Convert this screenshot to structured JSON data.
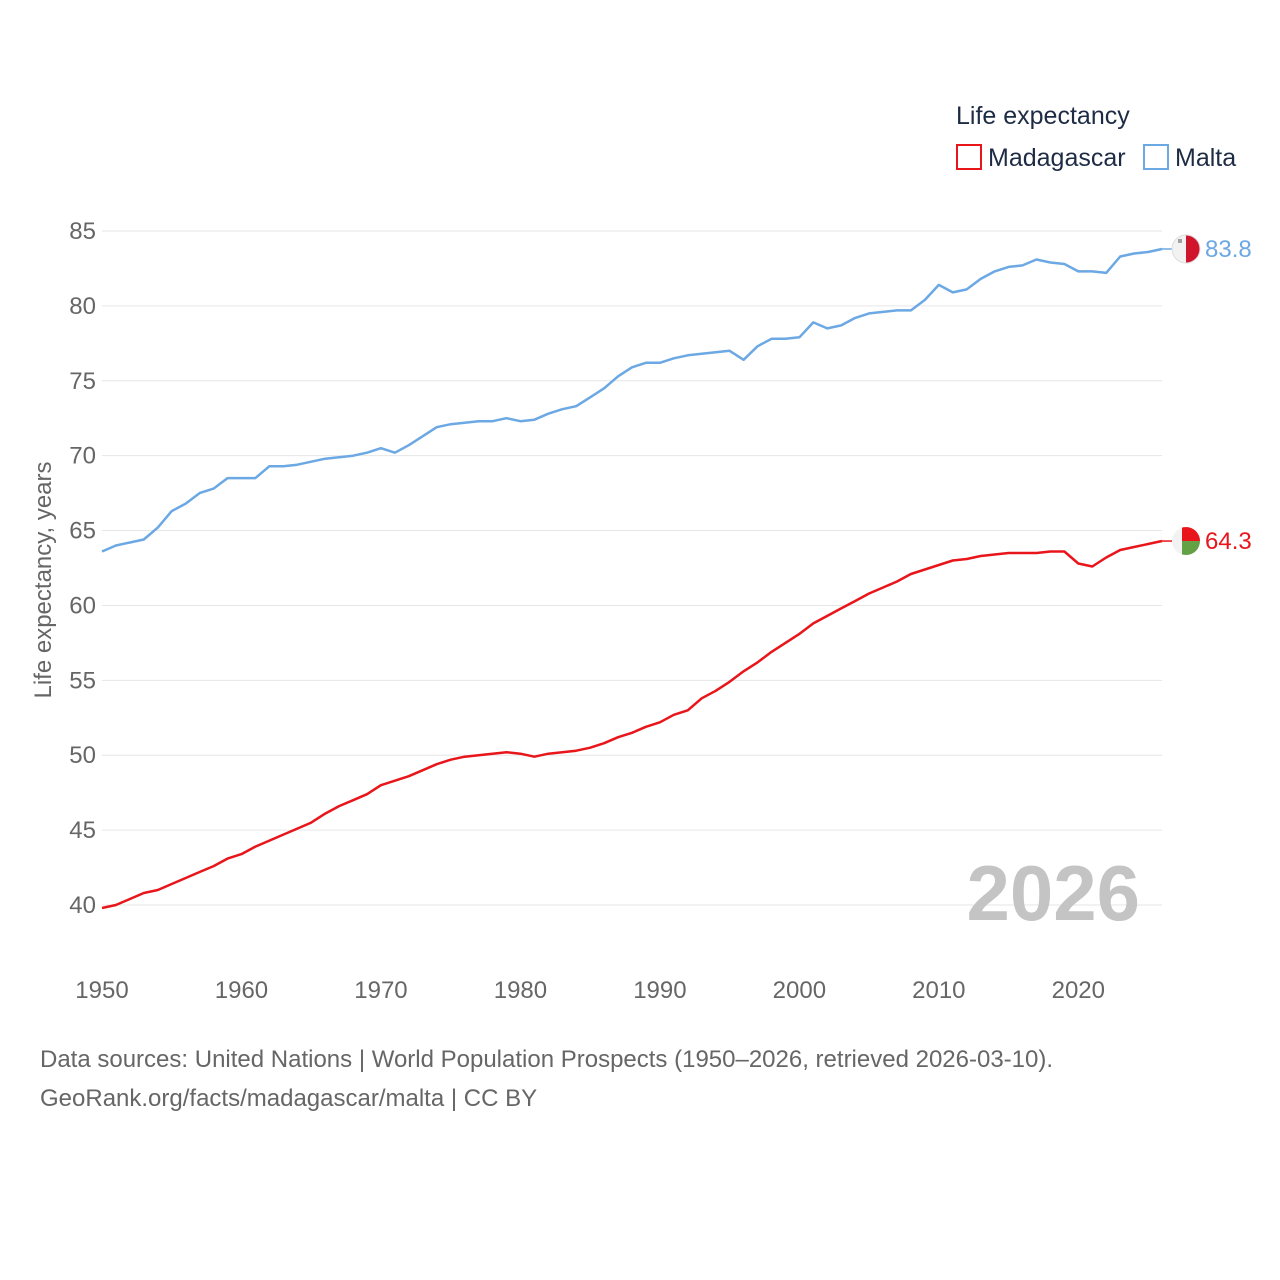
{
  "chart_data": {
    "type": "line",
    "legend_title": "Life expectancy",
    "ylabel": "Life expectancy, years",
    "xlim": [
      1950,
      2026
    ],
    "ylim": [
      38,
      86
    ],
    "x_ticks": [
      1950,
      1960,
      1970,
      1980,
      1990,
      2000,
      2010,
      2020
    ],
    "y_ticks": [
      40,
      45,
      50,
      55,
      60,
      65,
      70,
      75,
      80,
      85
    ],
    "year_label": "2026",
    "x": [
      1950,
      1951,
      1952,
      1953,
      1954,
      1955,
      1956,
      1957,
      1958,
      1959,
      1960,
      1961,
      1962,
      1963,
      1964,
      1965,
      1966,
      1967,
      1968,
      1969,
      1970,
      1971,
      1972,
      1973,
      1974,
      1975,
      1976,
      1977,
      1978,
      1979,
      1980,
      1981,
      1982,
      1983,
      1984,
      1985,
      1986,
      1987,
      1988,
      1989,
      1990,
      1991,
      1992,
      1993,
      1994,
      1995,
      1996,
      1997,
      1998,
      1999,
      2000,
      2001,
      2002,
      2003,
      2004,
      2005,
      2006,
      2007,
      2008,
      2009,
      2010,
      2011,
      2012,
      2013,
      2014,
      2015,
      2016,
      2017,
      2018,
      2019,
      2020,
      2021,
      2022,
      2023,
      2024,
      2025,
      2026
    ],
    "series": [
      {
        "name": "Madagascar",
        "color": "#e8161b",
        "end_label": "64.3",
        "flag": "madagascar",
        "values": [
          39.8,
          40.0,
          40.4,
          40.8,
          41.0,
          41.4,
          41.8,
          42.2,
          42.6,
          43.1,
          43.4,
          43.9,
          44.3,
          44.7,
          45.1,
          45.5,
          46.1,
          46.6,
          47.0,
          47.4,
          48.0,
          48.3,
          48.6,
          49.0,
          49.4,
          49.7,
          49.9,
          50.0,
          50.1,
          50.2,
          50.1,
          49.9,
          50.1,
          50.2,
          50.3,
          50.5,
          50.8,
          51.2,
          51.5,
          51.9,
          52.2,
          52.7,
          53.0,
          53.8,
          54.3,
          54.9,
          55.6,
          56.2,
          56.9,
          57.5,
          58.1,
          58.8,
          59.3,
          59.8,
          60.3,
          60.8,
          61.2,
          61.6,
          62.1,
          62.4,
          62.7,
          63.0,
          63.1,
          63.3,
          63.4,
          63.5,
          63.5,
          63.5,
          63.6,
          63.6,
          62.8,
          62.6,
          63.2,
          63.7,
          63.9,
          64.1,
          64.3
        ]
      },
      {
        "name": "Malta",
        "color": "#6ba8e4",
        "end_label": "83.8",
        "flag": "malta",
        "values": [
          63.6,
          64.0,
          64.2,
          64.4,
          65.2,
          66.3,
          66.8,
          67.5,
          67.8,
          68.5,
          68.5,
          68.5,
          69.3,
          69.3,
          69.4,
          69.6,
          69.8,
          69.9,
          70.0,
          70.2,
          70.5,
          70.2,
          70.7,
          71.3,
          71.9,
          72.1,
          72.2,
          72.3,
          72.3,
          72.5,
          72.3,
          72.4,
          72.8,
          73.1,
          73.3,
          73.9,
          74.5,
          75.3,
          75.9,
          76.2,
          76.2,
          76.5,
          76.7,
          76.8,
          76.9,
          77.0,
          76.4,
          77.3,
          77.8,
          77.8,
          77.9,
          78.9,
          78.5,
          78.7,
          79.2,
          79.5,
          79.6,
          79.7,
          79.7,
          80.4,
          81.4,
          80.9,
          81.1,
          81.8,
          82.3,
          82.6,
          82.7,
          83.1,
          82.9,
          82.8,
          82.3,
          82.3,
          82.2,
          83.3,
          83.5,
          83.6,
          83.8
        ]
      }
    ]
  },
  "source": {
    "line1": "Data sources: United Nations | World Population Prospects (1950–2026, retrieved 2026-03-10).",
    "line2": "GeoRank.org/facts/madagascar/malta | CC BY"
  }
}
